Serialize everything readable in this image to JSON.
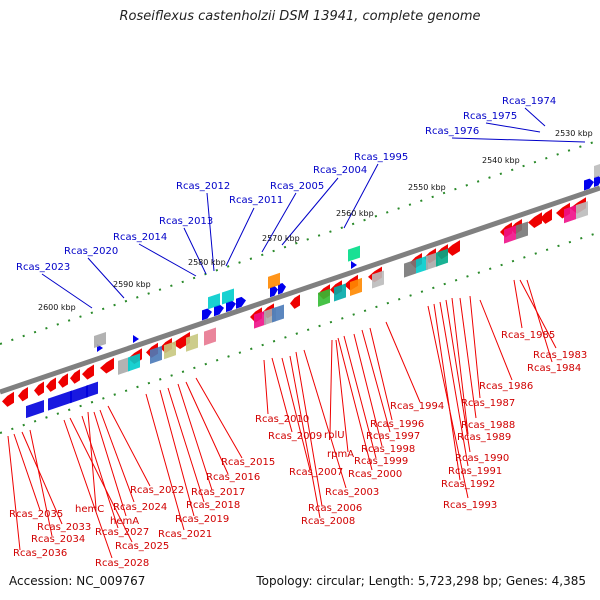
{
  "title": "Roseiflexus castenholzii DSM 13941, complete genome",
  "accession": "Accession: NC_009767",
  "summary": "Topology: circular; Length: 5,723,298 bp; Genes: 4,385",
  "colors": {
    "plus_label": "#0000c8",
    "minus_label": "#d00000",
    "backbone": "#808080"
  },
  "kbp_ticks": [
    "2530 kbp",
    "2540 kbp",
    "2550 kbp",
    "2560 kbp",
    "2570 kbp",
    "2580 kbp",
    "2590 kbp",
    "2600 kbp"
  ],
  "plus_labels": [
    "Rcas_1974",
    "Rcas_1975",
    "Rcas_1976",
    "Rcas_1995",
    "Rcas_2004",
    "Rcas_2005",
    "Rcas_2011",
    "Rcas_2012",
    "Rcas_2013",
    "Rcas_2014",
    "Rcas_2020",
    "Rcas_2023"
  ],
  "minus_labels": [
    "Rcas_1985",
    "Rcas_1983",
    "Rcas_1984",
    "Rcas_1986",
    "Rcas_1987",
    "Rcas_1988",
    "Rcas_1989",
    "Rcas_1990",
    "Rcas_1991",
    "Rcas_1992",
    "Rcas_1993",
    "Rcas_1994",
    "Rcas_1996",
    "Rcas_1997",
    "Rcas_1998",
    "rplU",
    "rpmA",
    "Rcas_1999",
    "Rcas_2000",
    "Rcas_2010",
    "Rcas_2009",
    "Rcas_2007",
    "Rcas_2003",
    "Rcas_2006",
    "Rcas_2008",
    "Rcas_2015",
    "Rcas_2016",
    "Rcas_2017",
    "Rcas_2018",
    "Rcas_2019",
    "Rcas_2021",
    "Rcas_2022",
    "Rcas_2024",
    "hemC",
    "hemA",
    "Rcas_2027",
    "Rcas_2025",
    "Rcas_2028",
    "Rcas_2035",
    "Rcas_2033",
    "Rcas_2034",
    "Rcas_2036"
  ]
}
